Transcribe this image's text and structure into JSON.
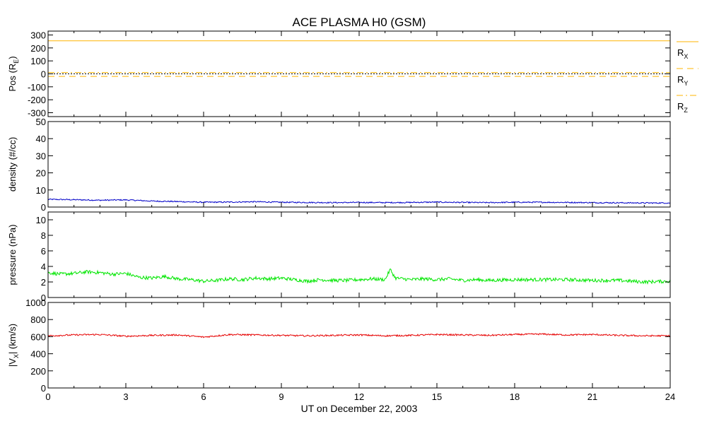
{
  "chart_data": {
    "title": "ACE PLASMA H0 (GSM)",
    "xlabel": "UT on December 22, 2003",
    "x_ticks": [
      "0",
      "3",
      "6",
      "9",
      "12",
      "15",
      "18",
      "21",
      "24"
    ],
    "xlim": [
      0,
      24
    ],
    "panels": [
      {
        "id": "pos",
        "type": "line",
        "ylabel_main": "Pos (R",
        "ylabel_sub": "E",
        "ylabel_tail": ")",
        "ylim": [
          -330,
          330
        ],
        "y_ticks": [
          "300",
          "200",
          "100",
          "0",
          "-100",
          "-200",
          "-300"
        ],
        "zero_line": true,
        "series": [
          {
            "name": "R",
            "sub": "X",
            "color": "#ffb400",
            "dash": "solid",
            "x": [
              0,
              24
            ],
            "values": [
              255,
              255
            ]
          },
          {
            "name": "R",
            "sub": "Y",
            "color": "#ffb400",
            "dash": "dashed",
            "x": [
              0,
              24
            ],
            "values": [
              -20,
              -20
            ]
          },
          {
            "name": "R",
            "sub": "Z",
            "color": "#ffb400",
            "dash": "dashdot",
            "x": [
              0,
              24
            ],
            "values": [
              10,
              10
            ]
          }
        ]
      },
      {
        "id": "density",
        "type": "line",
        "ylabel_main": "density (#/cc)",
        "ylim": [
          0,
          50
        ],
        "y_ticks": [
          "50",
          "40",
          "30",
          "20",
          "10",
          "0"
        ],
        "series": [
          {
            "name": "density",
            "color": "#0000c8",
            "x": [
              0,
              1,
              2,
              3,
              4,
              5,
              6,
              7,
              8,
              9,
              10,
              11,
              12,
              13,
              14,
              15,
              16,
              17,
              18,
              19,
              20,
              21,
              22,
              23,
              24
            ],
            "values": [
              4.5,
              4.3,
              4.0,
              4.2,
              3.5,
              3.2,
              2.8,
              2.9,
              3.1,
              2.8,
              2.7,
              2.6,
              2.7,
              2.6,
              2.7,
              2.9,
              2.7,
              2.6,
              2.8,
              2.8,
              2.7,
              2.6,
              2.5,
              2.4,
              2.4
            ]
          }
        ]
      },
      {
        "id": "pressure",
        "type": "line",
        "ylabel_main": "pressure (nPa)",
        "ylim": [
          0,
          11
        ],
        "y_ticks": [
          "10",
          "8",
          "6",
          "4",
          "2",
          "0"
        ],
        "series": [
          {
            "name": "pressure",
            "color": "#00e600",
            "x": [
              0,
              0.5,
              1,
              1.5,
              2,
              2.5,
              3,
              3.5,
              4,
              4.5,
              5,
              5.5,
              6,
              6.5,
              7,
              7.5,
              8,
              8.5,
              9,
              9.5,
              10,
              10.5,
              11,
              11.5,
              12,
              12.5,
              13,
              13.2,
              13.4,
              14,
              14.5,
              15,
              15.5,
              16,
              16.5,
              17,
              18,
              19,
              20,
              21,
              22,
              23,
              24
            ],
            "values": [
              3.2,
              3.0,
              3.1,
              3.3,
              3.2,
              3.0,
              3.1,
              2.6,
              2.5,
              2.7,
              2.4,
              2.3,
              2.1,
              2.2,
              2.4,
              2.3,
              2.5,
              2.4,
              2.5,
              2.3,
              2.1,
              2.3,
              2.2,
              2.2,
              2.3,
              2.4,
              2.3,
              3.6,
              2.5,
              2.3,
              2.4,
              2.3,
              2.4,
              2.2,
              2.3,
              2.2,
              2.3,
              2.3,
              2.3,
              2.2,
              2.2,
              2.0,
              2.1
            ]
          }
        ]
      },
      {
        "id": "vx",
        "type": "line",
        "ylabel_main": "|V",
        "ylabel_sub": "X",
        "ylabel_tail": "| (km/s)",
        "ylim": [
          0,
          1000
        ],
        "y_ticks": [
          "1000",
          "800",
          "600",
          "400",
          "200",
          "0"
        ],
        "series": [
          {
            "name": "|Vx|",
            "color": "#e60000",
            "x": [
              0,
              1,
              2,
              3,
              4,
              5,
              6,
              7,
              8,
              9,
              10,
              11,
              12,
              13,
              14,
              15,
              16,
              17,
              18,
              19,
              20,
              21,
              22,
              23,
              24
            ],
            "values": [
              610,
              620,
              625,
              605,
              615,
              620,
              595,
              625,
              620,
              615,
              610,
              615,
              620,
              610,
              615,
              625,
              620,
              615,
              625,
              630,
              620,
              625,
              615,
              610,
              610
            ]
          }
        ]
      }
    ]
  }
}
